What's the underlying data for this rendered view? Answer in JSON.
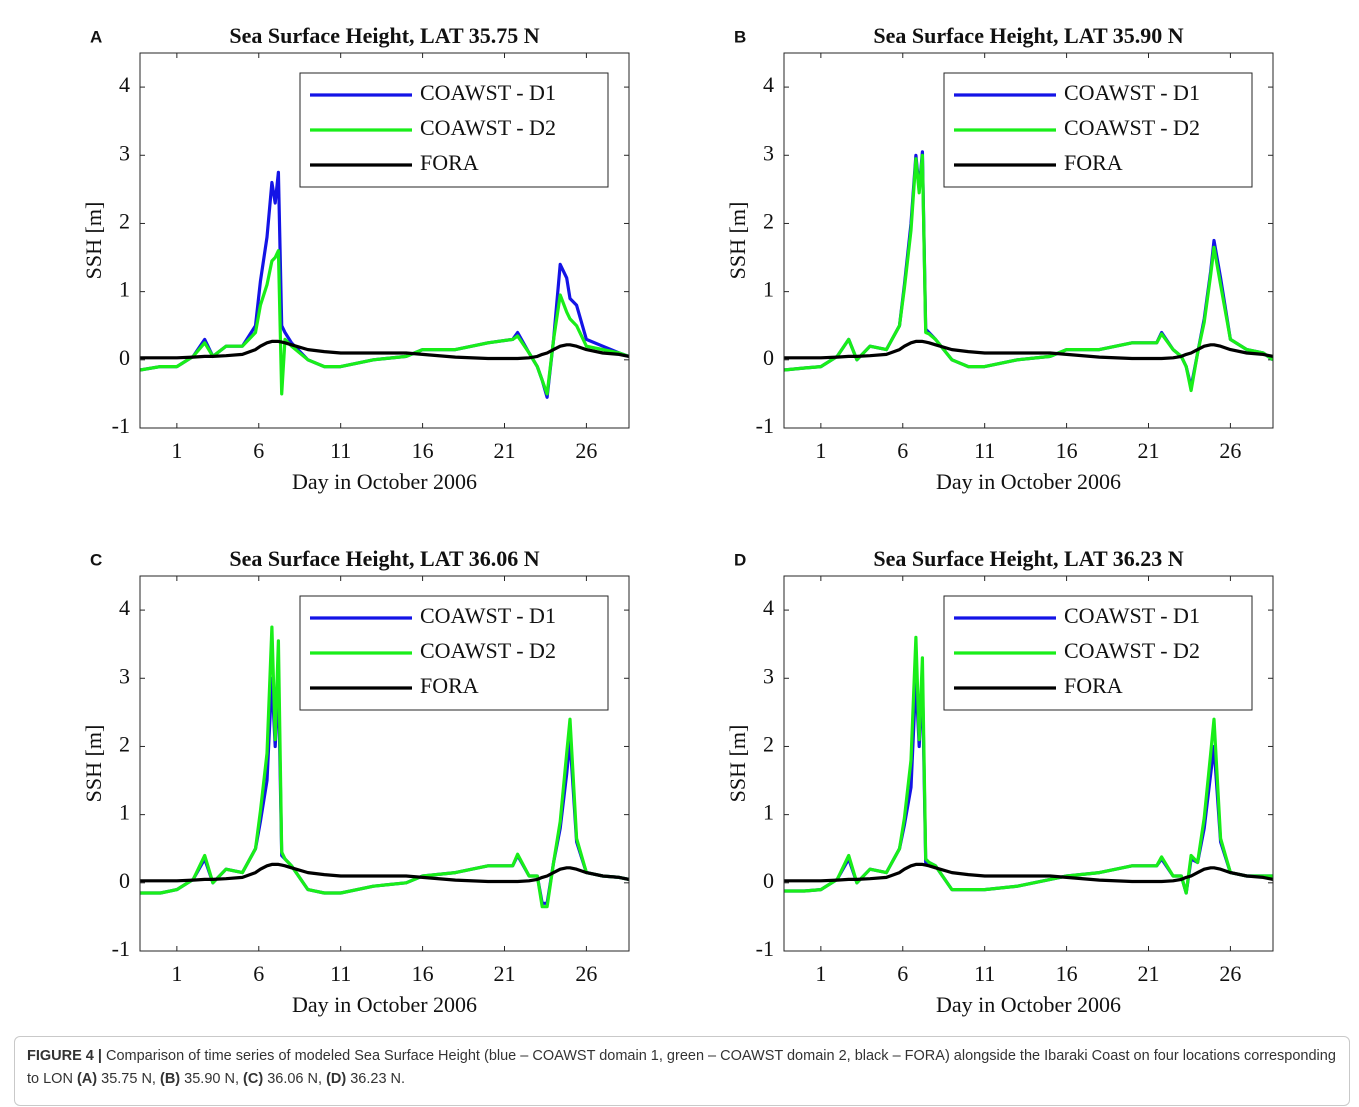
{
  "chart_data": [
    {
      "type": "line",
      "panel_label": "A",
      "title": "Sea Surface Height, LAT 35.75 N",
      "xlabel": "Day in October 2006",
      "ylabel": "SSH [m]",
      "xlim": [
        -1.25,
        28.6
      ],
      "ylim": [
        -1,
        4.5
      ],
      "xticks": [
        1,
        6,
        11,
        16,
        21,
        26
      ],
      "yticks": [
        -1,
        0,
        1,
        2,
        3,
        4
      ],
      "legend": "upper right",
      "x": [
        -1.25,
        0,
        1,
        2,
        2.7,
        3.2,
        4,
        5,
        5.8,
        6.1,
        6.5,
        6.8,
        7,
        7.2,
        7.4,
        7.6,
        8,
        9,
        10,
        11,
        13,
        15,
        16,
        18,
        20,
        21.5,
        21.8,
        22.5,
        23,
        23.3,
        23.6,
        24,
        24.4,
        24.8,
        25,
        25.4,
        26,
        27,
        28,
        28.6
      ],
      "series": [
        {
          "name": "COAWST - D1",
          "color": "#1414e6",
          "values": [
            -0.15,
            -0.1,
            -0.1,
            0.05,
            0.3,
            0.05,
            0.2,
            0.2,
            0.5,
            1.15,
            1.8,
            2.6,
            2.3,
            2.75,
            0.5,
            0.4,
            0.25,
            0,
            -0.1,
            -0.1,
            0,
            0.05,
            0.15,
            0.15,
            0.25,
            0.3,
            0.4,
            0.1,
            -0.1,
            -0.3,
            -0.55,
            0.3,
            1.4,
            1.2,
            0.9,
            0.8,
            0.3,
            0.2,
            0.1,
            0.05
          ]
        },
        {
          "name": "COAWST - D2",
          "color": "#19ee19",
          "values": [
            -0.15,
            -0.1,
            -0.1,
            0.05,
            0.25,
            0.05,
            0.2,
            0.2,
            0.4,
            0.8,
            1.1,
            1.45,
            1.5,
            1.6,
            -0.5,
            0.3,
            0.2,
            0,
            -0.1,
            -0.1,
            0,
            0.05,
            0.15,
            0.15,
            0.25,
            0.3,
            0.35,
            0.1,
            -0.1,
            -0.3,
            -0.5,
            0.3,
            0.95,
            0.7,
            0.6,
            0.5,
            0.2,
            0.15,
            0.1,
            0.05
          ]
        },
        {
          "name": "FORA",
          "color": "#000000",
          "values": [
            0.03,
            0.03,
            0.03,
            0.04,
            0.05,
            0.05,
            0.06,
            0.08,
            0.15,
            0.2,
            0.25,
            0.27,
            0.27,
            0.27,
            0.26,
            0.25,
            0.22,
            0.15,
            0.12,
            0.1,
            0.1,
            0.1,
            0.08,
            0.04,
            0.02,
            0.02,
            0.02,
            0.03,
            0.05,
            0.08,
            0.1,
            0.15,
            0.2,
            0.22,
            0.22,
            0.2,
            0.15,
            0.1,
            0.08,
            0.05
          ]
        }
      ]
    },
    {
      "type": "line",
      "panel_label": "B",
      "title": "Sea Surface Height, LAT 35.90 N",
      "xlabel": "Day in October 2006",
      "ylabel": "SSH [m]",
      "xlim": [
        -1.25,
        28.6
      ],
      "ylim": [
        -1,
        4.5
      ],
      "xticks": [
        1,
        6,
        11,
        16,
        21,
        26
      ],
      "yticks": [
        -1,
        0,
        1,
        2,
        3,
        4
      ],
      "legend": "upper right",
      "x": [
        -1.25,
        0,
        1,
        2,
        2.7,
        3.2,
        4,
        5,
        5.8,
        6.1,
        6.5,
        6.8,
        7,
        7.2,
        7.4,
        7.6,
        8,
        9,
        10,
        11,
        13,
        15,
        16,
        18,
        20,
        21.5,
        21.8,
        22.5,
        23,
        23.3,
        23.6,
        24,
        24.4,
        24.8,
        25,
        25.4,
        26,
        27,
        28,
        28.6
      ],
      "series": [
        {
          "name": "COAWST - D1",
          "color": "#1414e6",
          "values": [
            -0.15,
            -0.12,
            -0.1,
            0.05,
            0.3,
            0,
            0.2,
            0.15,
            0.5,
            1.1,
            2.0,
            3.0,
            2.5,
            3.05,
            0.45,
            0.4,
            0.3,
            0,
            -0.1,
            -0.1,
            0,
            0.05,
            0.15,
            0.15,
            0.25,
            0.25,
            0.4,
            0.15,
            0.05,
            -0.1,
            -0.4,
            0.1,
            0.6,
            1.3,
            1.75,
            1.2,
            0.3,
            0.15,
            0.1,
            0
          ]
        },
        {
          "name": "COAWST - D2",
          "color": "#19ee19",
          "values": [
            -0.15,
            -0.12,
            -0.1,
            0.05,
            0.3,
            0,
            0.2,
            0.15,
            0.5,
            1.05,
            1.9,
            2.95,
            2.45,
            3.0,
            0.4,
            0.38,
            0.3,
            0,
            -0.1,
            -0.1,
            0,
            0.05,
            0.15,
            0.15,
            0.25,
            0.25,
            0.38,
            0.15,
            0.05,
            -0.1,
            -0.45,
            0.1,
            0.55,
            1.25,
            1.65,
            1.1,
            0.3,
            0.15,
            0.1,
            0
          ]
        },
        {
          "name": "FORA",
          "color": "#000000",
          "values": [
            0.03,
            0.03,
            0.03,
            0.04,
            0.05,
            0.05,
            0.06,
            0.08,
            0.15,
            0.2,
            0.25,
            0.27,
            0.27,
            0.27,
            0.26,
            0.25,
            0.22,
            0.15,
            0.12,
            0.1,
            0.1,
            0.1,
            0.08,
            0.04,
            0.02,
            0.02,
            0.02,
            0.03,
            0.05,
            0.08,
            0.1,
            0.15,
            0.2,
            0.22,
            0.22,
            0.2,
            0.15,
            0.1,
            0.08,
            0.05
          ]
        }
      ]
    },
    {
      "type": "line",
      "panel_label": "C",
      "title": "Sea Surface Height, LAT 36.06 N",
      "xlabel": "Day in October 2006",
      "ylabel": "SSH [m]",
      "xlim": [
        -1.25,
        28.6
      ],
      "ylim": [
        -1,
        4.5
      ],
      "xticks": [
        1,
        6,
        11,
        16,
        21,
        26
      ],
      "yticks": [
        -1,
        0,
        1,
        2,
        3,
        4
      ],
      "legend": "upper right",
      "x": [
        -1.25,
        0,
        1,
        2,
        2.7,
        3.2,
        4,
        5,
        5.8,
        6.1,
        6.5,
        6.8,
        7,
        7.2,
        7.4,
        7.6,
        8,
        9,
        10,
        11,
        13,
        15,
        16,
        18,
        20,
        21.5,
        21.8,
        22.5,
        23,
        23.3,
        23.6,
        24,
        24.4,
        24.8,
        25,
        25.4,
        26,
        27,
        28,
        28.6
      ],
      "series": [
        {
          "name": "COAWST - D1",
          "color": "#1414e6",
          "values": [
            -0.15,
            -0.15,
            -0.1,
            0.05,
            0.35,
            0,
            0.2,
            0.15,
            0.5,
            0.9,
            1.5,
            3.0,
            2.0,
            3.0,
            0.4,
            0.35,
            0.25,
            -0.1,
            -0.15,
            -0.15,
            -0.05,
            0,
            0.1,
            0.15,
            0.25,
            0.25,
            0.4,
            0.1,
            0.1,
            -0.3,
            -0.3,
            0.3,
            0.8,
            1.6,
            2.1,
            0.6,
            0.15,
            0.1,
            0.08,
            0.05
          ]
        },
        {
          "name": "COAWST - D2",
          "color": "#19ee19",
          "values": [
            -0.15,
            -0.15,
            -0.1,
            0.05,
            0.4,
            0,
            0.2,
            0.15,
            0.5,
            1.05,
            1.9,
            3.75,
            2.1,
            3.55,
            0.45,
            0.35,
            0.25,
            -0.1,
            -0.15,
            -0.15,
            -0.05,
            0,
            0.1,
            0.15,
            0.25,
            0.25,
            0.42,
            0.1,
            0.1,
            -0.35,
            -0.35,
            0.3,
            0.9,
            1.9,
            2.4,
            0.65,
            0.15,
            0.1,
            0.08,
            0.05
          ]
        },
        {
          "name": "FORA",
          "color": "#000000",
          "values": [
            0.03,
            0.03,
            0.03,
            0.04,
            0.05,
            0.05,
            0.06,
            0.08,
            0.15,
            0.2,
            0.25,
            0.27,
            0.27,
            0.27,
            0.26,
            0.25,
            0.22,
            0.15,
            0.12,
            0.1,
            0.1,
            0.1,
            0.08,
            0.04,
            0.02,
            0.02,
            0.02,
            0.03,
            0.05,
            0.08,
            0.1,
            0.15,
            0.2,
            0.22,
            0.22,
            0.2,
            0.15,
            0.1,
            0.08,
            0.05
          ]
        }
      ]
    },
    {
      "type": "line",
      "panel_label": "D",
      "title": "Sea Surface Height, LAT 36.23 N",
      "xlabel": "Day in October 2006",
      "ylabel": "SSH [m]",
      "xlim": [
        -1.25,
        28.6
      ],
      "ylim": [
        -1,
        4.5
      ],
      "xticks": [
        1,
        6,
        11,
        16,
        21,
        26
      ],
      "yticks": [
        -1,
        0,
        1,
        2,
        3,
        4
      ],
      "legend": "upper right",
      "x": [
        -1.25,
        0,
        1,
        2,
        2.7,
        3.2,
        4,
        5,
        5.8,
        6.1,
        6.5,
        6.8,
        7,
        7.2,
        7.4,
        7.6,
        8,
        9,
        10,
        11,
        13,
        15,
        16,
        18,
        20,
        21.5,
        21.8,
        22.5,
        23,
        23.3,
        23.6,
        24,
        24.4,
        24.8,
        25,
        25.4,
        26,
        27,
        28,
        28.6
      ],
      "series": [
        {
          "name": "COAWST - D1",
          "color": "#1414e6",
          "values": [
            -0.12,
            -0.12,
            -0.1,
            0.05,
            0.35,
            0,
            0.2,
            0.15,
            0.5,
            0.85,
            1.4,
            3.0,
            2.0,
            3.0,
            0.3,
            0.3,
            0.25,
            -0.1,
            -0.1,
            -0.1,
            -0.05,
            0.05,
            0.1,
            0.15,
            0.25,
            0.25,
            0.35,
            0.1,
            0.1,
            -0.15,
            0.35,
            0.3,
            0.8,
            1.6,
            2.0,
            0.6,
            0.15,
            0.1,
            0.1,
            0.1
          ]
        },
        {
          "name": "COAWST - D2",
          "color": "#19ee19",
          "values": [
            -0.12,
            -0.12,
            -0.1,
            0.05,
            0.4,
            0,
            0.2,
            0.15,
            0.5,
            0.95,
            1.8,
            3.6,
            2.1,
            3.3,
            0.35,
            0.3,
            0.25,
            -0.1,
            -0.1,
            -0.1,
            -0.05,
            0.05,
            0.1,
            0.15,
            0.25,
            0.25,
            0.38,
            0.1,
            0.1,
            -0.15,
            0.4,
            0.3,
            0.95,
            1.9,
            2.4,
            0.65,
            0.15,
            0.1,
            0.1,
            0.1
          ]
        },
        {
          "name": "FORA",
          "color": "#000000",
          "values": [
            0.03,
            0.03,
            0.03,
            0.04,
            0.05,
            0.05,
            0.06,
            0.08,
            0.15,
            0.2,
            0.25,
            0.27,
            0.27,
            0.27,
            0.26,
            0.25,
            0.22,
            0.15,
            0.12,
            0.1,
            0.1,
            0.1,
            0.08,
            0.04,
            0.02,
            0.02,
            0.02,
            0.03,
            0.05,
            0.08,
            0.1,
            0.15,
            0.2,
            0.22,
            0.22,
            0.2,
            0.15,
            0.1,
            0.08,
            0.05
          ]
        }
      ]
    }
  ],
  "caption": {
    "label": "FIGURE 4 |",
    "text": "Comparison of time series of modeled Sea Surface Height (blue – COAWST domain 1, green – COAWST domain 2, black – FORA) alongside the Ibaraki Coast on four locations corresponding to LON",
    "items": [
      {
        "letter": "(A)",
        "value": "35.75 N,"
      },
      {
        "letter": "(B)",
        "value": "35.90 N,"
      },
      {
        "letter": "(C)",
        "value": "36.06 N,"
      },
      {
        "letter": "(D)",
        "value": "36.23 N."
      }
    ]
  }
}
